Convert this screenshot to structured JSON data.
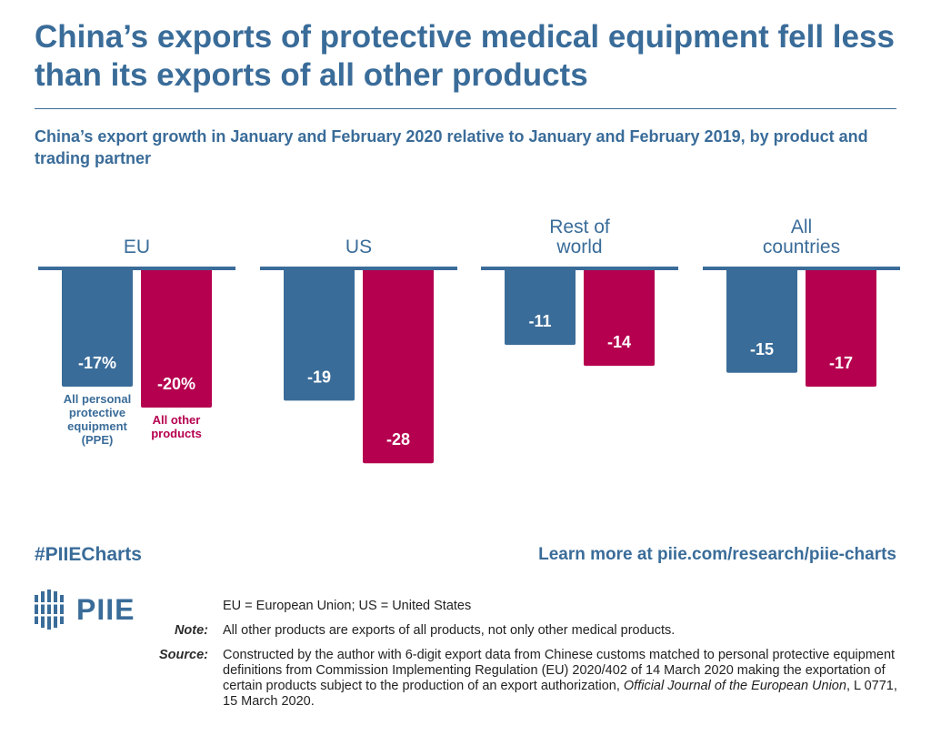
{
  "header": {
    "title": "China’s exports of protective medical equipment fell less than its exports of all other products",
    "subtitle": "China’s export growth in January and February 2020 relative to January and February 2019, by product and trading partner"
  },
  "chart_data": {
    "type": "bar",
    "title": "China’s exports of protective medical equipment fell less than its exports of all other products",
    "subtitle": "China’s export growth in January and February 2020 relative to January and February 2019, by product and trading partner",
    "unit": "%",
    "categories": [
      "EU",
      "US",
      "Rest of world",
      "All countries"
    ],
    "category_lines": [
      [
        "EU"
      ],
      [
        "US"
      ],
      [
        "Rest of",
        "world"
      ],
      [
        "All",
        "countries"
      ]
    ],
    "series": [
      {
        "name": "All personal protective equipment (PPE)",
        "name_lines": [
          "All personal",
          "protective",
          "equipment",
          "(PPE)"
        ],
        "color": "#3a6c99",
        "values": [
          -17,
          -19,
          -11,
          -15
        ],
        "labels": [
          "-17%",
          "-19",
          "-11",
          "-15"
        ]
      },
      {
        "name": "All other products",
        "name_lines": [
          "All other",
          "products"
        ],
        "color": "#b5004f",
        "values": [
          -20,
          -28,
          -14,
          -17
        ],
        "labels": [
          "-20%",
          "-28",
          "-14",
          "-17"
        ]
      }
    ],
    "ylim": [
      -30,
      0
    ],
    "grid": false,
    "legend": "direct labels under first group"
  },
  "footer": {
    "hashtag": "#PIIECharts",
    "learn_more": "Learn more at piie.com/research/piie-charts",
    "logo_text": "PIIE",
    "abbrev": "EU = European Union; US = United States",
    "note_label": "Note:",
    "note": "All other products are exports of all products, not only other medical products.",
    "source_label": "Source:",
    "source_text": "Constructed by the author with 6-digit export data from Chinese customs matched to personal protective equipment definitions from Commission Implementing Regulation (EU) 2020/402 of 14 March 2020 making the exportation of certain products subject to the production of an export authorization, ",
    "source_journal": "Official Journal of the European Union",
    "source_end": ", L 0771, 15 March 2020."
  },
  "colors": {
    "accent_blue": "#3a6c99",
    "accent_red": "#b5004f"
  }
}
